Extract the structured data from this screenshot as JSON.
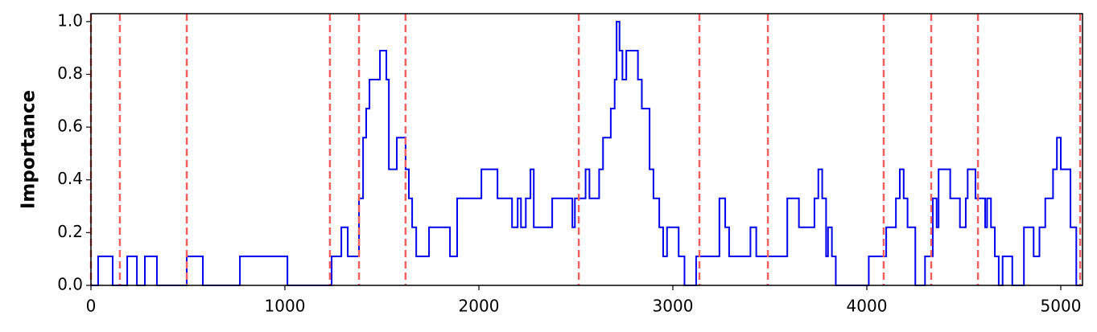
{
  "chart_data": {
    "type": "line",
    "step": "post",
    "ylabel": "Importance",
    "xlim": [
      0,
      5112
    ],
    "ylim": [
      0,
      1.03
    ],
    "xticks": [
      0,
      1000,
      2000,
      3000,
      4000,
      5000
    ],
    "yticks": [
      {
        "value": 0,
        "label": "0.0"
      },
      {
        "value": 0.2,
        "label": "0.2"
      },
      {
        "value": 0.4,
        "label": "0.4"
      },
      {
        "value": 0.6,
        "label": "0.6"
      },
      {
        "value": 0.8,
        "label": "0.8"
      },
      {
        "value": 1,
        "label": "1.0"
      }
    ],
    "vlines": {
      "color": "#f06060",
      "x": [
        0,
        149,
        494,
        1232,
        1382,
        1622,
        2515,
        3137,
        3490,
        4087,
        4332,
        4573,
        5100
      ]
    },
    "series": [
      {
        "color": "#0000ee",
        "x": [
          0,
          37,
          112,
          187,
          237,
          278,
          340,
          494,
          577,
          768,
          1013,
          1241,
          1291,
          1324,
          1382,
          1403,
          1419,
          1436,
          1490,
          1523,
          1536,
          1577,
          1622,
          1639,
          1656,
          1677,
          1743,
          1851,
          1888,
          2013,
          2096,
          2171,
          2200,
          2217,
          2242,
          2266,
          2283,
          2378,
          2482,
          2495,
          2550,
          2570,
          2620,
          2640,
          2680,
          2700,
          2710,
          2725,
          2740,
          2760,
          2820,
          2840,
          2880,
          2900,
          2930,
          2950,
          2970,
          3030,
          3060,
          3120,
          3240,
          3270,
          3290,
          3400,
          3430,
          3590,
          3650,
          3730,
          3750,
          3770,
          3790,
          3800,
          3820,
          3840,
          4010,
          4100,
          4150,
          4170,
          4190,
          4210,
          4250,
          4300,
          4340,
          4360,
          4370,
          4430,
          4480,
          4510,
          4520,
          4560,
          4610,
          4620,
          4640,
          4660,
          4680,
          4700,
          4750,
          4810,
          4860,
          4890,
          4920,
          4960,
          4980,
          5000,
          5050,
          5080
        ],
        "values": [
          0,
          0.11,
          0,
          0.11,
          0,
          0.11,
          0,
          0.11,
          0,
          0.11,
          0,
          0.11,
          0.22,
          0.11,
          0.33,
          0.56,
          0.67,
          0.78,
          0.89,
          0.78,
          0.44,
          0.56,
          0.44,
          0.33,
          0.22,
          0.11,
          0.22,
          0.11,
          0.33,
          0.44,
          0.33,
          0.22,
          0.33,
          0.22,
          0.33,
          0.44,
          0.22,
          0.33,
          0.22,
          0.33,
          0.44,
          0.33,
          0.44,
          0.56,
          0.67,
          0.78,
          1.0,
          0.89,
          0.78,
          0.89,
          0.78,
          0.67,
          0.44,
          0.33,
          0.22,
          0.11,
          0.22,
          0.11,
          0,
          0.11,
          0.33,
          0.22,
          0.11,
          0.22,
          0.11,
          0.33,
          0.22,
          0.33,
          0.44,
          0.33,
          0.11,
          0.22,
          0.11,
          0,
          0.11,
          0.22,
          0.33,
          0.44,
          0.33,
          0.22,
          0,
          0.11,
          0.33,
          0.22,
          0.44,
          0.33,
          0.22,
          0.33,
          0.44,
          0.33,
          0.22,
          0.33,
          0.22,
          0.11,
          0,
          0.11,
          0,
          0.22,
          0.11,
          0.22,
          0.33,
          0.44,
          0.56,
          0.44,
          0.22,
          0
        ]
      }
    ]
  }
}
